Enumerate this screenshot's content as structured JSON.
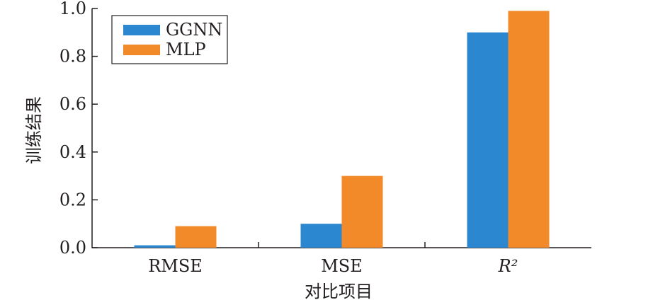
{
  "chart_data": {
    "type": "bar",
    "title": "",
    "xlabel": "对比项目",
    "ylabel": "训练结果",
    "categories": [
      "RMSE",
      "MSE",
      "R²"
    ],
    "series": [
      {
        "name": "GGNN",
        "values": [
          0.01,
          0.1,
          0.9
        ],
        "color": "#2b88d0"
      },
      {
        "name": "MLP",
        "values": [
          0.09,
          0.3,
          0.99
        ],
        "color": "#f28a2a"
      }
    ],
    "ylim": [
      0,
      1.0
    ],
    "yticks": [
      "0.0",
      "0.2",
      "0.4",
      "0.6",
      "0.8",
      "1.0"
    ],
    "grid": false,
    "legend_position": "top-left"
  }
}
